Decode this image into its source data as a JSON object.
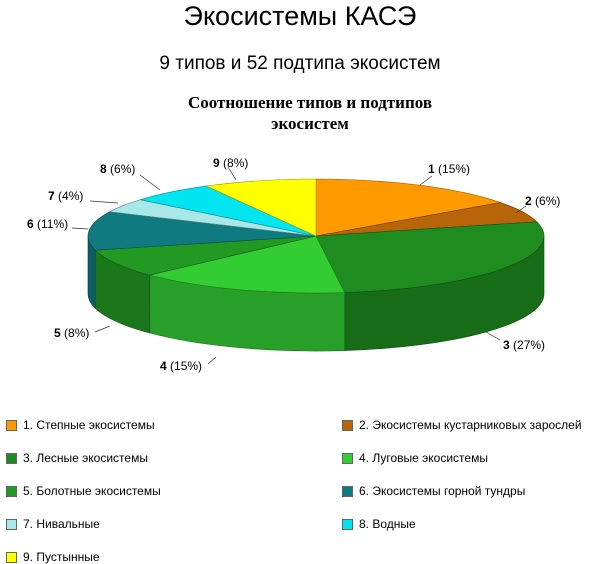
{
  "page": {
    "title": "Экосистемы КАСЭ",
    "subtitle": "9 типов и 52 подтипа экосистем"
  },
  "chart_data": {
    "type": "pie",
    "title_line1": "Соотношение типов и подтипов",
    "title_line2": "экосистем",
    "three_d": true,
    "legend_position": "bottom",
    "slices": [
      {
        "id": "1",
        "label": "1 (15%)",
        "value": 15,
        "color": "#FF9900",
        "legend": "1. Степные экосистемы"
      },
      {
        "id": "2",
        "label": "2 (6%)",
        "value": 6,
        "color": "#B8650A",
        "legend": "2. Экосистемы кустарниковых зарослей"
      },
      {
        "id": "3",
        "label": "3 (27%)",
        "value": 27,
        "color": "#1E8C1E",
        "legend": "3.  Лесные экосистемы"
      },
      {
        "id": "4",
        "label": "4 (15%)",
        "value": 15,
        "color": "#33CC33",
        "legend": "4. Луговые экосистемы"
      },
      {
        "id": "5",
        "label": "5 (8%)",
        "value": 8,
        "color": "#229922",
        "legend": "5. Болотные экосистемы"
      },
      {
        "id": "6",
        "label": "6 (11%)",
        "value": 11,
        "color": "#0F7A80",
        "legend": "6. Экосистемы горной тундры"
      },
      {
        "id": "7",
        "label": "7 (4%)",
        "value": 4,
        "color": "#A8E8E8",
        "legend": "7. Нивальные"
      },
      {
        "id": "8",
        "label": "8 (6%)",
        "value": 6,
        "color": "#00E5F0",
        "legend": "8. Водные"
      },
      {
        "id": "9",
        "label": "9 (8%)",
        "value": 8,
        "color": "#FFFF00",
        "legend": "9. Пустынные"
      }
    ]
  }
}
